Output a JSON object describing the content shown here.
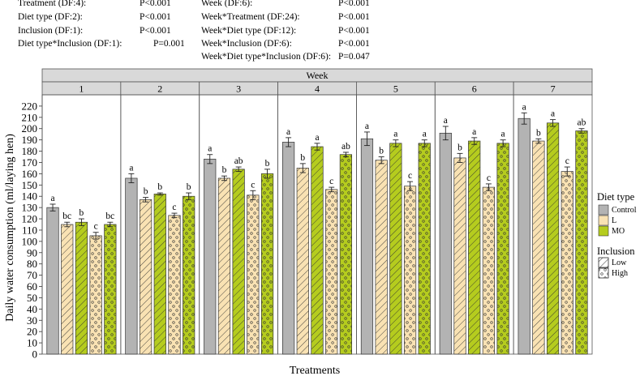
{
  "stats": {
    "left": [
      {
        "label": "Treatment (DF:4):",
        "p": "P<0.001"
      },
      {
        "label": "Diet type (DF:2):",
        "p": "P<0.001"
      },
      {
        "label": "Inclusion (DF:1):",
        "p": "P<0.001"
      },
      {
        "label": "Diet type*Inclusion (DF:1):",
        "p": "P=0.001"
      }
    ],
    "right": [
      {
        "label": "Week (DF:6):",
        "p": "P<0.001"
      },
      {
        "label": "Week*Treatment (DF:24):",
        "p": "P<0.001"
      },
      {
        "label": "Week*Diet type (DF:12):",
        "p": "P<0.001"
      },
      {
        "label": "Week*Inclusion (DF:6):",
        "p": "P<0.001"
      },
      {
        "label": "Week*Diet type*Inclusion (DF:6):",
        "p": "P=0.047"
      }
    ]
  },
  "colors": {
    "Control": "#b3b3b3",
    "L": "#f9e2b3",
    "MO": "#b5cc1e",
    "strip": "#d9d9d9",
    "errorbar": "#222222"
  },
  "legend": {
    "diet_title": "Diet type",
    "diet_items": [
      "Control",
      "L",
      "MO"
    ],
    "inclusion_title": "Inclusion",
    "inclusion_items": [
      "Low",
      "High"
    ]
  },
  "chart_data": {
    "type": "bar",
    "title": "",
    "strip_title": "Week",
    "xlabel": "Treatments",
    "ylabel": "Daily water consumption (ml/laying hen)",
    "ylim": [
      0,
      230
    ],
    "yticks": [
      0,
      10,
      20,
      30,
      40,
      50,
      60,
      70,
      80,
      90,
      100,
      110,
      120,
      130,
      140,
      150,
      160,
      170,
      180,
      190,
      200,
      210,
      220
    ],
    "facets": [
      "1",
      "2",
      "3",
      "4",
      "5",
      "6",
      "7"
    ],
    "treatments": [
      {
        "diet": "Control",
        "inclusion": null
      },
      {
        "diet": "L",
        "inclusion": "Low"
      },
      {
        "diet": "MO",
        "inclusion": "Low"
      },
      {
        "diet": "L",
        "inclusion": "High"
      },
      {
        "diet": "MO",
        "inclusion": "High"
      }
    ],
    "values": [
      [
        130,
        115,
        117,
        105,
        115
      ],
      [
        156,
        137,
        142,
        123,
        140
      ],
      [
        173,
        156,
        164,
        141,
        160
      ],
      [
        188,
        165,
        184,
        146,
        177
      ],
      [
        191,
        172,
        187,
        149,
        187
      ],
      [
        196,
        174,
        189,
        148,
        187
      ],
      [
        209,
        189,
        205,
        162,
        198
      ]
    ],
    "errors": [
      [
        3,
        2,
        3,
        3,
        2
      ],
      [
        4,
        2,
        1,
        2,
        3
      ],
      [
        4,
        2,
        2,
        4,
        4
      ],
      [
        4,
        4,
        3,
        2,
        2
      ],
      [
        6,
        3,
        3,
        4,
        3
      ],
      [
        6,
        4,
        3,
        3,
        3
      ],
      [
        5,
        2,
        3,
        4,
        2
      ]
    ],
    "significance": [
      [
        "a",
        "bc",
        "b",
        "c",
        "bc"
      ],
      [
        "a",
        "b",
        "b",
        "c",
        "b"
      ],
      [
        "a",
        "b",
        "ab",
        "c",
        "b"
      ],
      [
        "a",
        "b",
        "a",
        "c",
        "ab"
      ],
      [
        "a",
        "b",
        "a",
        "c",
        "a"
      ],
      [
        "a",
        "b",
        "a",
        "c",
        "a"
      ],
      [
        "a",
        "b",
        "a",
        "c",
        "ab"
      ]
    ]
  }
}
